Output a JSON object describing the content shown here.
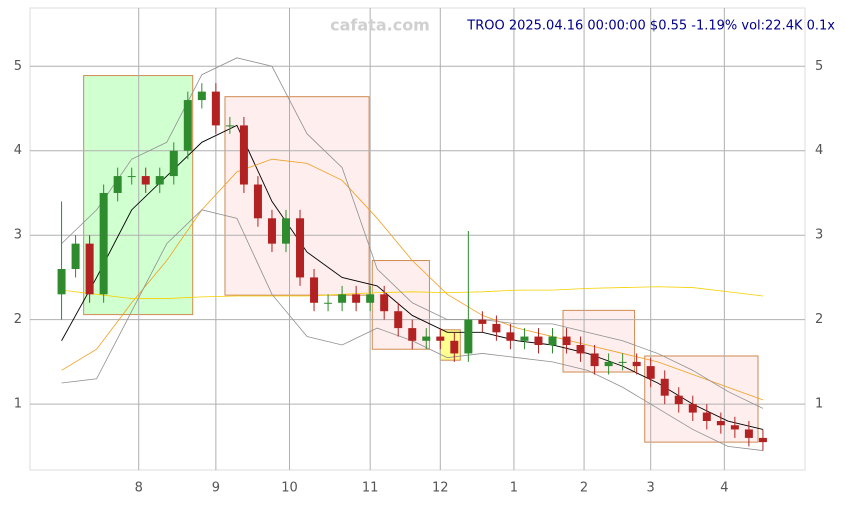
{
  "chart_data": {
    "type": "candlestick",
    "title": "TROO 2025.04.16 00:00:00 $0.55 -1.19% vol:22.4K 0.1x",
    "watermark": "cafata.com",
    "xlim": [
      -9,
      212
    ],
    "ylim": [
      0.22,
      5.69
    ],
    "xticks": [
      {
        "value": 22,
        "label": "8"
      },
      {
        "value": 44,
        "label": "9"
      },
      {
        "value": 65,
        "label": "10"
      },
      {
        "value": 88,
        "label": "11"
      },
      {
        "value": 108,
        "label": "12"
      },
      {
        "value": 129,
        "label": "1"
      },
      {
        "value": 149,
        "label": "2"
      },
      {
        "value": 168,
        "label": "3"
      },
      {
        "value": 189,
        "label": "4"
      }
    ],
    "yticks": [
      1,
      2,
      3,
      4,
      5
    ],
    "grid": true,
    "up_color": "#2e8b2e",
    "down_color": "#b22222",
    "x": [
      0,
      4,
      8,
      12,
      16,
      20,
      24,
      28,
      32,
      36,
      40,
      44,
      48,
      52,
      56,
      60,
      64,
      68,
      72,
      76,
      80,
      84,
      88,
      92,
      96,
      100,
      104,
      108,
      112,
      116,
      120,
      124,
      128,
      132,
      136,
      140,
      144,
      148,
      152,
      156,
      160,
      164,
      168,
      172,
      176,
      180,
      184,
      188,
      192,
      196,
      200
    ],
    "open": [
      2.3,
      2.6,
      2.9,
      2.3,
      3.5,
      3.7,
      3.7,
      3.6,
      3.7,
      4.0,
      4.6,
      4.7,
      4.3,
      4.3,
      3.6,
      3.2,
      2.9,
      3.2,
      2.5,
      2.2,
      2.2,
      2.3,
      2.2,
      2.3,
      2.1,
      1.9,
      1.75,
      1.8,
      1.75,
      1.6,
      2.0,
      1.95,
      1.85,
      1.75,
      1.8,
      1.7,
      1.8,
      1.7,
      1.6,
      1.45,
      1.5,
      1.5,
      1.45,
      1.3,
      1.1,
      1.0,
      0.9,
      0.8,
      0.75,
      0.7,
      0.6
    ],
    "high": [
      3.4,
      3.0,
      3.0,
      3.6,
      3.8,
      3.8,
      3.8,
      3.8,
      4.1,
      4.7,
      4.8,
      4.8,
      4.4,
      4.4,
      3.7,
      3.3,
      3.3,
      3.3,
      2.6,
      2.3,
      2.4,
      2.4,
      2.4,
      2.4,
      2.2,
      2.0,
      1.9,
      1.9,
      1.85,
      3.05,
      2.1,
      2.05,
      1.95,
      1.9,
      1.9,
      1.9,
      1.9,
      1.8,
      1.7,
      1.6,
      1.6,
      1.6,
      1.55,
      1.4,
      1.2,
      1.1,
      1.0,
      0.9,
      0.85,
      0.8,
      0.7
    ],
    "low": [
      2.0,
      2.5,
      2.2,
      2.2,
      3.4,
      3.6,
      3.5,
      3.5,
      3.6,
      3.9,
      4.5,
      4.2,
      4.2,
      3.5,
      3.1,
      2.8,
      2.8,
      2.4,
      2.1,
      2.1,
      2.1,
      2.1,
      2.1,
      2.0,
      1.8,
      1.65,
      1.65,
      1.65,
      1.5,
      1.5,
      1.85,
      1.75,
      1.65,
      1.65,
      1.6,
      1.6,
      1.6,
      1.5,
      1.35,
      1.35,
      1.4,
      1.35,
      1.2,
      1.0,
      0.9,
      0.8,
      0.7,
      0.65,
      0.6,
      0.5,
      0.45
    ],
    "close": [
      2.6,
      2.9,
      2.3,
      3.5,
      3.7,
      3.7,
      3.6,
      3.7,
      4.0,
      4.6,
      4.7,
      4.3,
      4.3,
      3.6,
      3.2,
      2.9,
      3.2,
      2.5,
      2.2,
      2.2,
      2.3,
      2.2,
      2.3,
      2.1,
      1.9,
      1.75,
      1.8,
      1.75,
      1.6,
      2.0,
      1.95,
      1.85,
      1.75,
      1.8,
      1.7,
      1.8,
      1.7,
      1.6,
      1.45,
      1.5,
      1.5,
      1.45,
      1.3,
      1.1,
      1.0,
      0.9,
      0.8,
      0.75,
      0.7,
      0.6,
      0.55
    ],
    "series": [
      {
        "color": "#000000",
        "x": [
          0,
          10,
          20,
          30,
          40,
          50,
          60,
          70,
          80,
          90,
          100,
          110,
          120,
          130,
          140,
          150,
          160,
          170,
          180,
          190,
          200
        ],
        "values": [
          1.75,
          2.5,
          3.3,
          3.7,
          4.1,
          4.3,
          3.4,
          2.8,
          2.5,
          2.4,
          2.05,
          1.85,
          1.85,
          1.75,
          1.7,
          1.6,
          1.45,
          1.25,
          1.0,
          0.8,
          0.7
        ]
      },
      {
        "color": "#f0a020",
        "x": [
          0,
          10,
          20,
          30,
          40,
          50,
          60,
          70,
          80,
          90,
          100,
          110,
          120,
          130,
          140,
          150,
          160,
          170,
          180,
          190,
          200
        ],
        "values": [
          1.4,
          1.65,
          2.2,
          2.7,
          3.3,
          3.75,
          3.9,
          3.85,
          3.65,
          3.2,
          2.7,
          2.3,
          2.05,
          1.9,
          1.8,
          1.7,
          1.6,
          1.5,
          1.35,
          1.2,
          1.05
        ]
      },
      {
        "color": "#f5d000",
        "x": [
          0,
          10,
          20,
          30,
          40,
          50,
          60,
          70,
          80,
          90,
          100,
          110,
          120,
          130,
          140,
          150,
          160,
          170,
          180,
          190,
          200
        ],
        "values": [
          2.35,
          2.3,
          2.25,
          2.25,
          2.27,
          2.28,
          2.28,
          2.28,
          2.3,
          2.32,
          2.33,
          2.32,
          2.33,
          2.35,
          2.35,
          2.37,
          2.38,
          2.39,
          2.38,
          2.33,
          2.28
        ]
      },
      {
        "color": "#909090",
        "x": [
          0,
          10,
          20,
          30,
          40,
          50,
          60,
          70,
          80,
          90,
          100,
          110,
          120,
          130,
          140,
          150,
          160,
          170,
          180,
          190,
          200
        ],
        "values": [
          2.9,
          3.3,
          3.9,
          4.1,
          4.9,
          5.1,
          5.0,
          4.2,
          3.8,
          2.6,
          2.2,
          2.0,
          2.0,
          1.95,
          1.95,
          1.85,
          1.75,
          1.6,
          1.4,
          1.15,
          0.95
        ]
      },
      {
        "color": "#909090",
        "x": [
          0,
          10,
          20,
          30,
          40,
          50,
          60,
          70,
          80,
          90,
          100,
          110,
          120,
          130,
          140,
          150,
          160,
          170,
          180,
          190,
          200
        ],
        "values": [
          1.25,
          1.3,
          2.1,
          2.9,
          3.3,
          3.2,
          2.3,
          1.8,
          1.7,
          1.9,
          1.75,
          1.55,
          1.6,
          1.55,
          1.5,
          1.4,
          1.2,
          0.95,
          0.7,
          0.5,
          0.45
        ]
      }
    ],
    "zones": [
      {
        "x": [
          6.3,
          37.4
        ],
        "y": [
          2.06,
          4.89
        ],
        "color": "#aaffaa"
      },
      {
        "x": [
          46.6,
          87.7
        ],
        "y": [
          2.29,
          4.64
        ],
        "color": "#fde0e0"
      },
      {
        "x": [
          88.6,
          104.9
        ],
        "y": [
          1.65,
          2.7
        ],
        "color": "#fde0e0"
      },
      {
        "x": [
          108,
          113.7
        ],
        "y": [
          1.52,
          1.88
        ],
        "color": "#ffff33"
      },
      {
        "x": [
          143,
          163.4
        ],
        "y": [
          1.38,
          2.11
        ],
        "color": "#fde0e0"
      },
      {
        "x": [
          166.3,
          198.6
        ],
        "y": [
          0.55,
          1.57
        ],
        "color": "#fde0e0"
      }
    ]
  }
}
